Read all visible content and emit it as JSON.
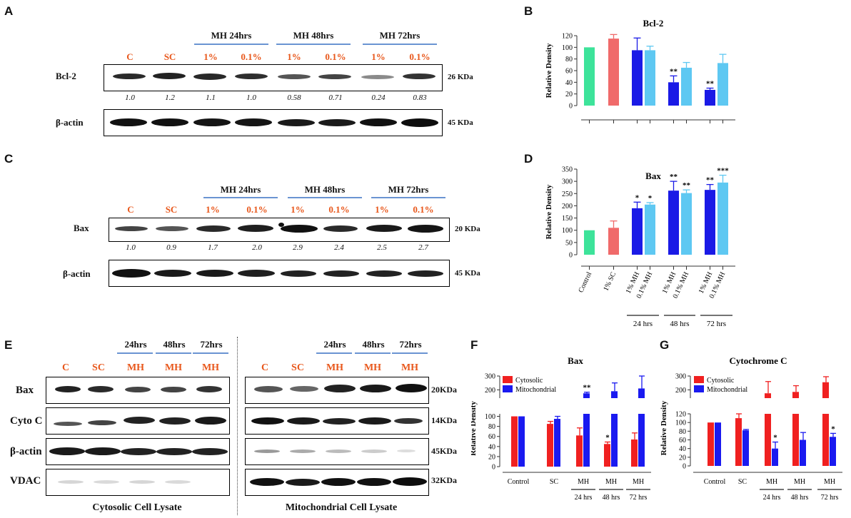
{
  "panels": {
    "A": "A",
    "B": "B",
    "C": "C",
    "D": "D",
    "E": "E",
    "F": "F",
    "G": "G"
  },
  "colors": {
    "control": "#3de39a",
    "sc": "#f06a6a",
    "mh1": "#1a1ae6",
    "mh01": "#5ec8f2",
    "cyto": "#f02020",
    "mito": "#1a1af0",
    "label_red": "#e8571b",
    "header_line": "#6a94d2"
  },
  "panel_a": {
    "headers": [
      "MH 24hrs",
      "MH 48hrs",
      "MH 72hrs"
    ],
    "lanes": [
      "C",
      "SC",
      "1%",
      "0.1%",
      "1%",
      "0.1%",
      "1%",
      "0.1%"
    ],
    "row1": "Bcl-2",
    "row1_kda": "26 KDa",
    "ratios": [
      "1.0",
      "1.2",
      "1.1",
      "1.0",
      "0.58",
      "0.71",
      "0.24",
      "0.83"
    ],
    "row2": "β-actin",
    "row2_kda": "45 KDa"
  },
  "panel_c": {
    "headers": [
      "MH 24hrs",
      "MH 48hrs",
      "MH 72hrs"
    ],
    "lanes": [
      "C",
      "SC",
      "1%",
      "0.1%",
      "1%",
      "0.1%",
      "1%",
      "0.1%"
    ],
    "row1": "Bax",
    "row1_kda": "20 KDa",
    "ratios": [
      "1.0",
      "0.9",
      "1.7",
      "2.0",
      "2.9",
      "2.4",
      "2.5",
      "2.7"
    ],
    "row2": "β-actin",
    "row2_kda": "45 KDa"
  },
  "panel_e": {
    "headers": [
      "24hrs",
      "48hrs",
      "72hrs"
    ],
    "lanes": [
      "C",
      "SC",
      "MH",
      "MH",
      "MH"
    ],
    "rows": [
      "Bax",
      "Cyto C",
      "β-actin",
      "VDAC"
    ],
    "kdas": [
      "20KDa",
      "14KDa",
      "45KDa",
      "32KDa"
    ],
    "left_caption": "Cytosolic Cell Lysate",
    "right_caption": "Mitochondrial Cell Lysate"
  },
  "chart_data": [
    {
      "panel": "B",
      "type": "bar",
      "title": "Bcl-2",
      "ylabel": "Relative Density",
      "ylim": [
        0,
        120
      ],
      "yticks": [
        "0",
        "20",
        "40",
        "60",
        "80",
        "100",
        "120"
      ],
      "values": [
        100,
        115,
        95,
        95,
        40,
        65,
        27,
        73
      ],
      "errors": [
        0,
        7,
        21,
        7,
        11,
        9,
        3,
        15
      ],
      "stars": [
        "",
        "",
        "",
        "",
        "**",
        "",
        "**",
        ""
      ]
    },
    {
      "panel": "D",
      "type": "bar",
      "title": "Bax",
      "ylabel": "Relative Density",
      "ylim": [
        0,
        350
      ],
      "yticks": [
        "0",
        "50",
        "100",
        "150",
        "200",
        "250",
        "300",
        "350"
      ],
      "categories": [
        "Control",
        "1% SC",
        "1% MH",
        "0.1% MH",
        "1% MH",
        "0.1% MH",
        "1% MH",
        "0.1% MH"
      ],
      "groups": [
        "24 hrs",
        "48 hrs",
        "72 hrs"
      ],
      "values": [
        100,
        110,
        190,
        205,
        262,
        252,
        265,
        295
      ],
      "errors": [
        0,
        28,
        25,
        8,
        38,
        13,
        22,
        30
      ],
      "stars": [
        "",
        "",
        "*",
        "*",
        "**",
        "**",
        "**",
        "***"
      ]
    },
    {
      "panel": "F",
      "type": "bar",
      "title": "Bax",
      "ylabel": "Relative Density",
      "yticks_low": [
        "0",
        "20",
        "40",
        "60",
        "80",
        "100"
      ],
      "yticks_high": [
        "200",
        "300"
      ],
      "categories": [
        "Control",
        "SC",
        "MH",
        "MH",
        "MH"
      ],
      "groups": [
        "24 hrs",
        "48 hrs",
        "72 hrs"
      ],
      "series": [
        {
          "name": "Cytosolic",
          "values": [
            100,
            85,
            62,
            45,
            54
          ],
          "errors": [
            0,
            5,
            15,
            4,
            13
          ],
          "stars": [
            "",
            "",
            "",
            "*",
            ""
          ]
        },
        {
          "name": "Mitochondrial",
          "values": [
            100,
            95,
            175,
            190,
            210
          ],
          "errors": [
            0,
            5,
            8,
            60,
            90
          ],
          "stars": [
            "",
            "",
            "**",
            "",
            ""
          ]
        }
      ]
    },
    {
      "panel": "G",
      "type": "bar",
      "title": "Cytochrome C",
      "ylabel": "Relative Density",
      "yticks_low": [
        "0",
        "20",
        "40",
        "60",
        "80",
        "100",
        "120"
      ],
      "yticks_high": [
        "200",
        "300"
      ],
      "categories": [
        "Control",
        "SC",
        "MH",
        "MH",
        "MH"
      ],
      "groups": [
        "24 hrs",
        "48 hrs",
        "72 hrs"
      ],
      "series": [
        {
          "name": "Cytosolic",
          "values": [
            100,
            110,
            175,
            185,
            255
          ],
          "errors": [
            0,
            10,
            85,
            45,
            40
          ],
          "stars": [
            "",
            "",
            "",
            "",
            ""
          ]
        },
        {
          "name": "Mitochondrial",
          "values": [
            100,
            82,
            40,
            60,
            67
          ],
          "errors": [
            0,
            2,
            15,
            17,
            8
          ],
          "stars": [
            "",
            "",
            "*",
            "",
            "*"
          ]
        }
      ]
    }
  ]
}
